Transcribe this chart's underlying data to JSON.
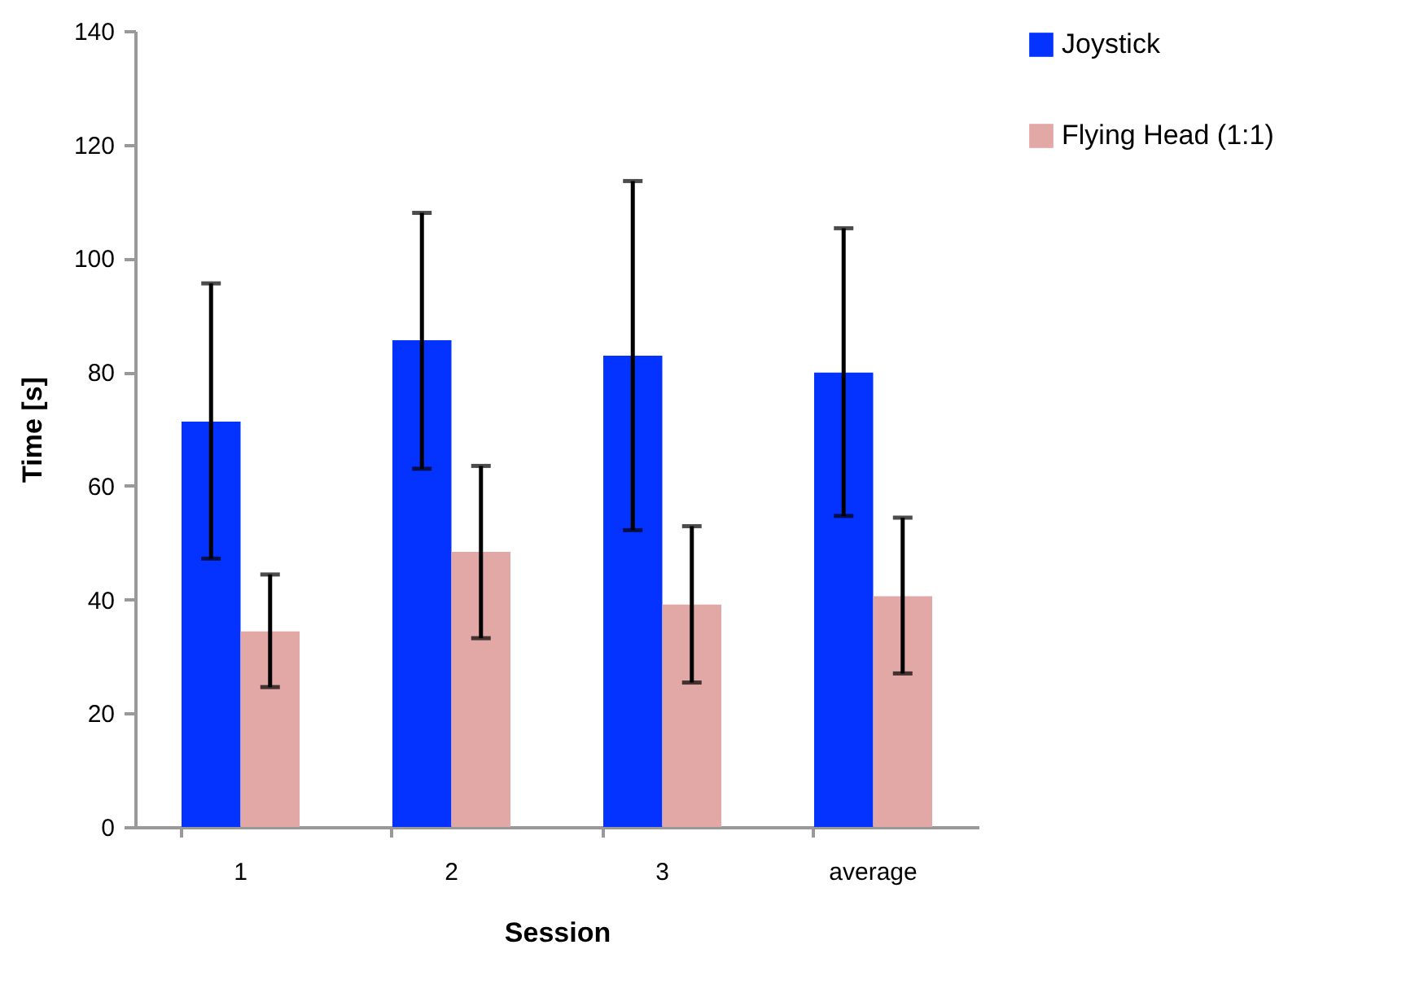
{
  "chart_data": {
    "type": "bar",
    "xlabel": "Session",
    "ylabel": "Time [s]",
    "categories": [
      "1",
      "2",
      "3",
      "average"
    ],
    "series": [
      {
        "name": "Joystick",
        "color": "#0433ff",
        "values": [
          71.3,
          85.6,
          82.9,
          79.9
        ],
        "errors": [
          [
            47.2,
            95.6
          ],
          [
            63.0,
            108.0
          ],
          [
            52.2,
            113.6
          ],
          [
            54.7,
            105.3
          ]
        ]
      },
      {
        "name": "Flying Head (1:1)",
        "color": "#e2a8a6",
        "values": [
          34.4,
          48.4,
          39.1,
          40.6
        ],
        "errors": [
          [
            24.6,
            44.4
          ],
          [
            33.2,
            63.5
          ],
          [
            25.4,
            52.9
          ],
          [
            27.0,
            54.4
          ]
        ]
      }
    ],
    "ylim": [
      0,
      140
    ],
    "yticks": [
      0,
      20,
      40,
      60,
      80,
      100,
      120,
      140
    ],
    "grid": false,
    "legend": "right"
  }
}
